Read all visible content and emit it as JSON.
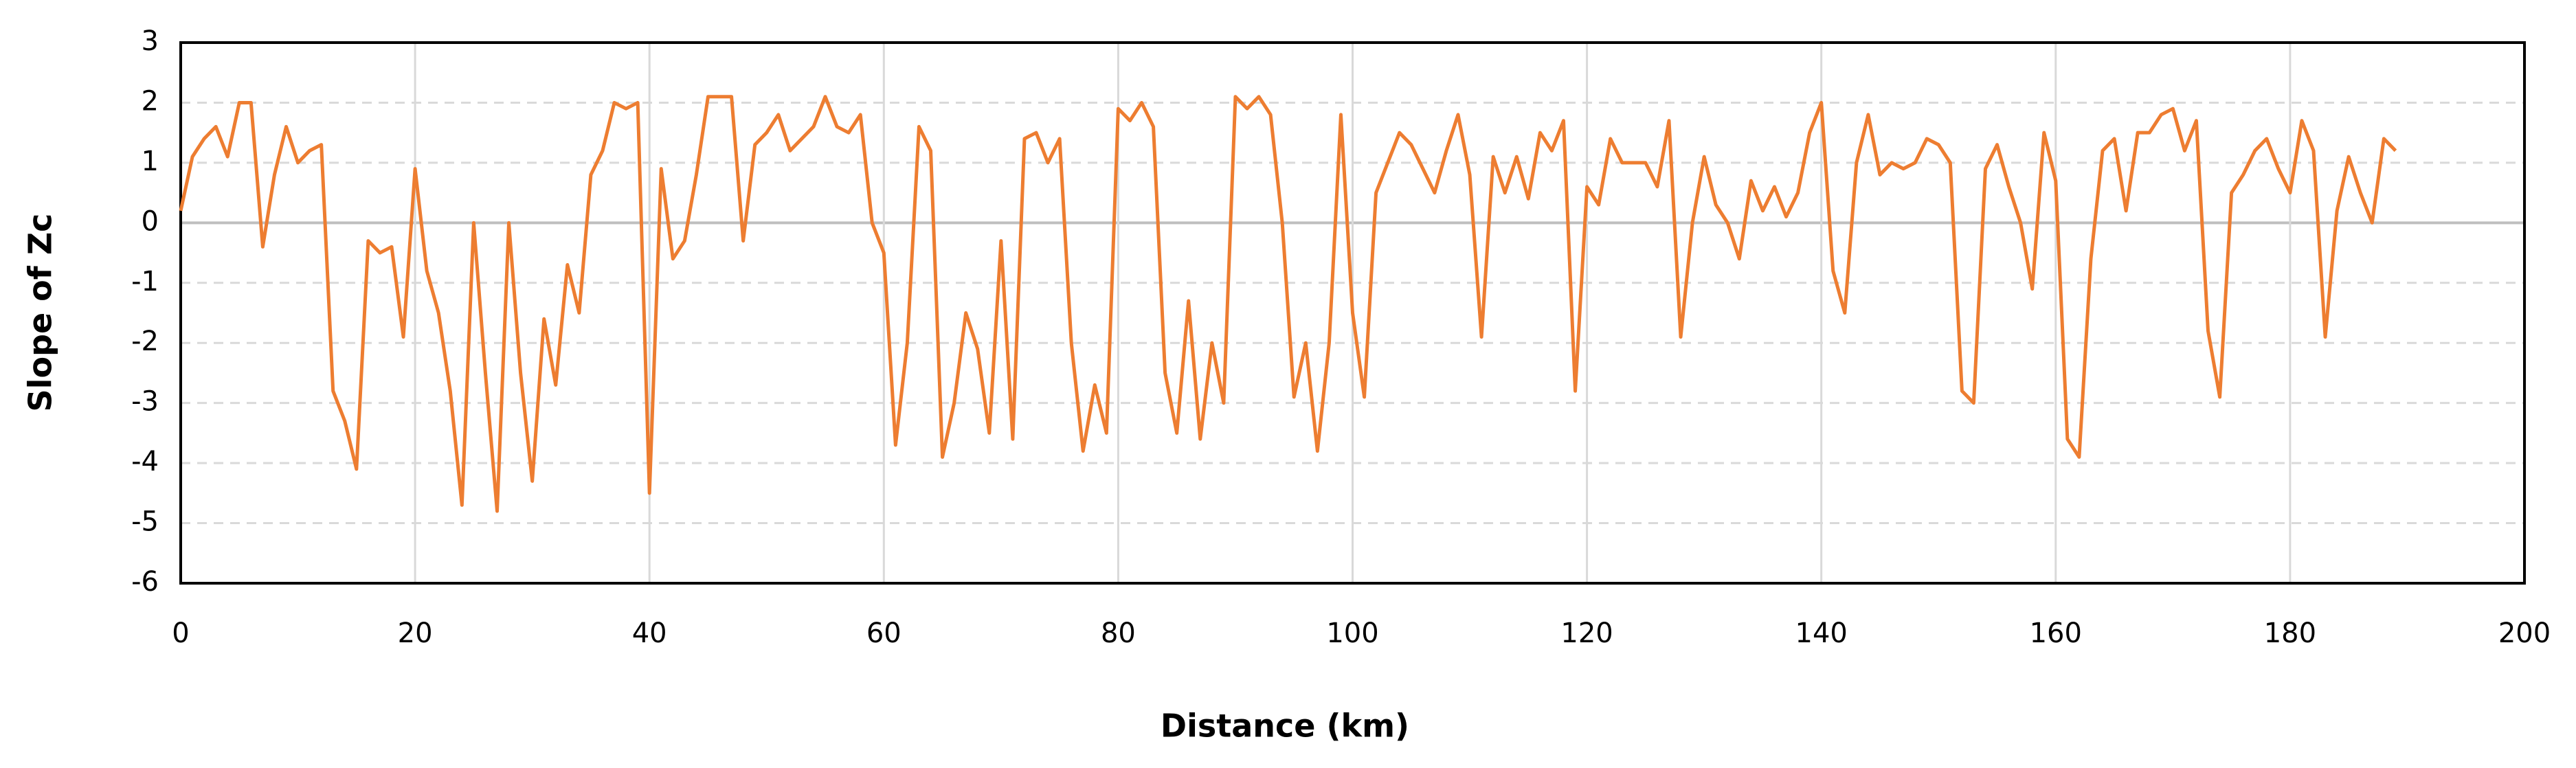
{
  "chart_data": {
    "type": "line",
    "x_label": "Distance  (km)",
    "y_label": "Slope of Zc",
    "xlim": [
      0,
      200
    ],
    "xticks": [
      0,
      20,
      40,
      60,
      80,
      100,
      120,
      140,
      160,
      180,
      200
    ],
    "ylim": [
      -6,
      3
    ],
    "yticks": [
      -6,
      -5,
      -4,
      -3,
      -2,
      -1,
      0,
      1,
      2,
      3
    ],
    "grid": true,
    "x": [
      0,
      1,
      2,
      3,
      4,
      5,
      6,
      7,
      8,
      9,
      10,
      11,
      12,
      13,
      14,
      15,
      16,
      17,
      18,
      19,
      20,
      21,
      22,
      23,
      24,
      25,
      26,
      27,
      28,
      29,
      30,
      31,
      32,
      33,
      34,
      35,
      36,
      37,
      38,
      39,
      40,
      41,
      42,
      43,
      44,
      45,
      46,
      47,
      48,
      49,
      50,
      51,
      52,
      53,
      54,
      55,
      56,
      57,
      58,
      59,
      60,
      61,
      62,
      63,
      64,
      65,
      66,
      67,
      68,
      69,
      70,
      71,
      72,
      73,
      74,
      75,
      76,
      77,
      78,
      79,
      80,
      81,
      82,
      83,
      84,
      85,
      86,
      87,
      88,
      89,
      90,
      91,
      92,
      93,
      94,
      95,
      96,
      97,
      98,
      99,
      100,
      101,
      102,
      103,
      104,
      105,
      106,
      107,
      108,
      109,
      110,
      111,
      112,
      113,
      114,
      115,
      116,
      117,
      118,
      119,
      120,
      121,
      122,
      123,
      124,
      125,
      126,
      127,
      128,
      129,
      130,
      131,
      132,
      133,
      134,
      135,
      136,
      137,
      138,
      139,
      140,
      141,
      142,
      143,
      144,
      145,
      146,
      147,
      148,
      149,
      150,
      151,
      152,
      153,
      154,
      155,
      156,
      157,
      158,
      159,
      160,
      161,
      162,
      163,
      164,
      165,
      166,
      167,
      168,
      169,
      170,
      171,
      172,
      173,
      174,
      175,
      176,
      177,
      178,
      179,
      180,
      181,
      182,
      183,
      184,
      185,
      186,
      187,
      188,
      189
    ],
    "series": [
      {
        "color": "#ed7d31",
        "values": [
          0.2,
          1.1,
          1.4,
          1.6,
          1.1,
          2.0,
          2.0,
          -0.4,
          0.8,
          1.6,
          1.0,
          1.2,
          1.3,
          -2.8,
          -3.3,
          -4.1,
          -0.3,
          -0.5,
          -0.4,
          -1.9,
          0.9,
          -0.8,
          -1.5,
          -2.8,
          -4.7,
          0.0,
          -2.5,
          -4.8,
          0.0,
          -2.5,
          -4.3,
          -1.6,
          -2.7,
          -0.7,
          -1.5,
          0.8,
          1.2,
          2.0,
          1.9,
          2.0,
          -4.5,
          0.9,
          -0.6,
          -0.3,
          0.8,
          2.1,
          2.1,
          2.1,
          -0.3,
          1.3,
          1.5,
          1.8,
          1.2,
          1.4,
          1.6,
          2.1,
          1.6,
          1.5,
          1.8,
          0.0,
          -0.5,
          -3.7,
          -2.0,
          1.6,
          1.2,
          -3.9,
          -3.0,
          -1.5,
          -2.1,
          -3.5,
          -0.3,
          -3.6,
          1.4,
          1.5,
          1.0,
          1.4,
          -2.0,
          -3.8,
          -2.7,
          -3.5,
          1.9,
          1.7,
          2.0,
          1.6,
          -2.5,
          -3.5,
          -1.3,
          -3.6,
          -2.0,
          -3.0,
          2.1,
          1.9,
          2.1,
          1.8,
          0.0,
          -2.9,
          -2.0,
          -3.8,
          -2.0,
          1.8,
          -1.5,
          -2.9,
          0.5,
          1.0,
          1.5,
          1.3,
          0.9,
          0.5,
          1.2,
          1.8,
          0.8,
          -1.9,
          1.1,
          0.5,
          1.1,
          0.4,
          1.5,
          1.2,
          1.7,
          -2.8,
          0.6,
          0.3,
          1.4,
          1.0,
          1.0,
          1.0,
          0.6,
          1.7,
          -1.9,
          0.0,
          1.1,
          0.3,
          0.0,
          -0.6,
          0.7,
          0.2,
          0.6,
          0.1,
          0.5,
          1.5,
          2.0,
          -0.8,
          -1.5,
          1.0,
          1.8,
          0.8,
          1.0,
          0.9,
          1.0,
          1.4,
          1.3,
          1.0,
          -2.8,
          -3.0,
          0.9,
          1.3,
          0.6,
          0.0,
          -1.1,
          1.5,
          0.7,
          -3.6,
          -3.9,
          -0.6,
          1.2,
          1.4,
          0.2,
          1.5,
          1.5,
          1.8,
          1.9,
          1.2,
          1.7,
          -1.8,
          -2.9,
          0.5,
          0.8,
          1.2,
          1.4,
          0.9,
          0.5,
          1.7,
          1.2,
          -1.9,
          0.2,
          1.1,
          0.5,
          0.0,
          1.4,
          1.2
        ]
      }
    ]
  }
}
